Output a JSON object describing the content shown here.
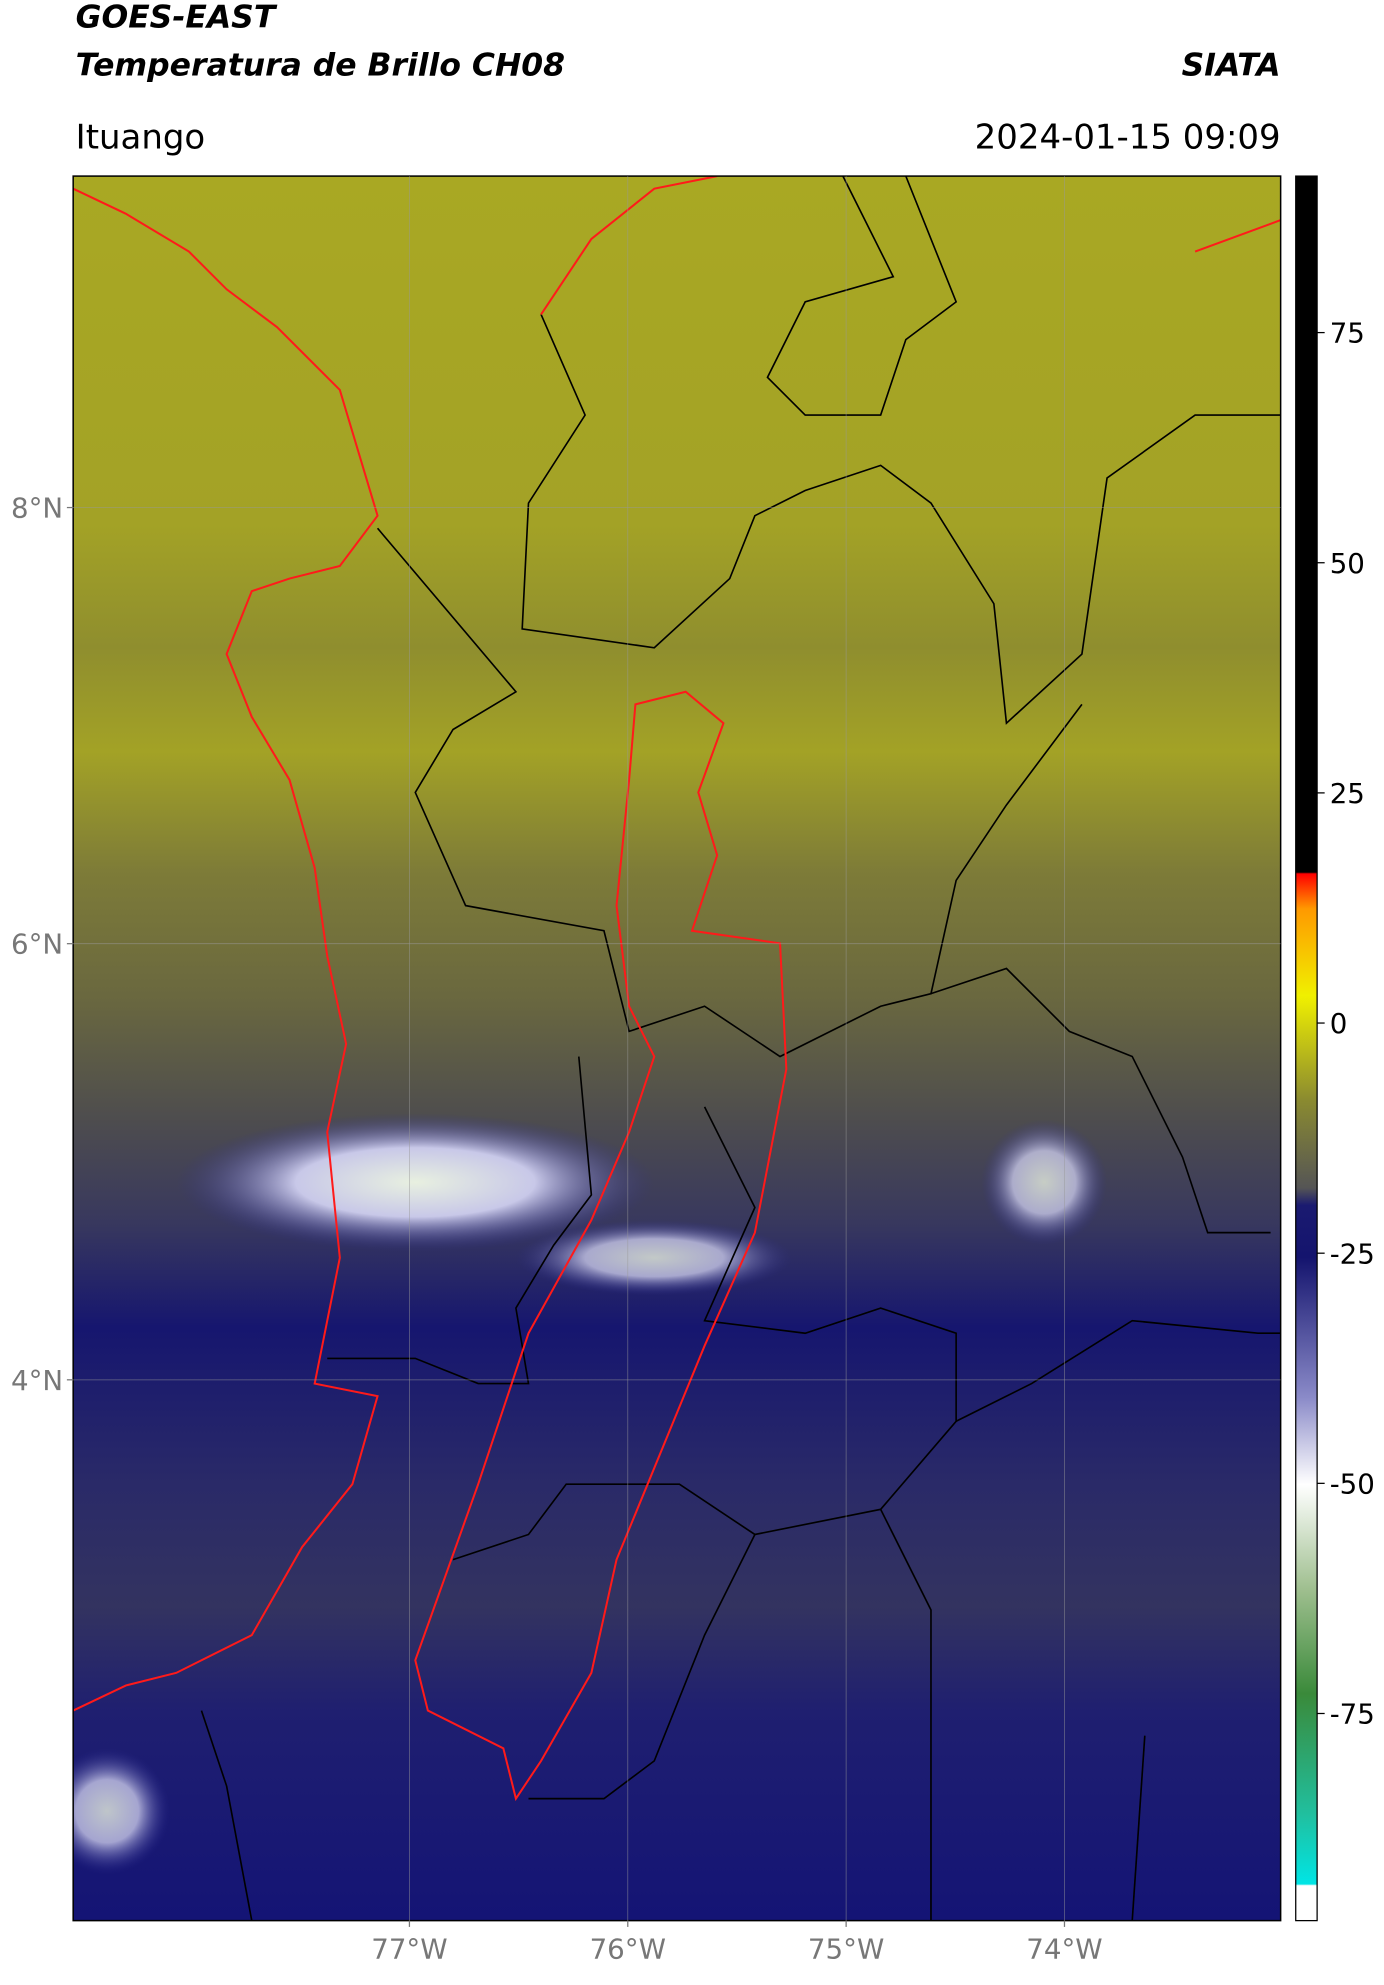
{
  "header": {
    "satellite": "GOES-EAST",
    "product": "Temperatura de Brillo CH08",
    "agency": "SIATA",
    "region": "Ituango",
    "datetime": "2024-01-15 09:09"
  },
  "map": {
    "xlim": [
      -78.54,
      -73.01
    ],
    "ylim": [
      1.52,
      9.52
    ],
    "lat_ticks": [
      {
        "value": 8,
        "label": "8°N"
      },
      {
        "value": 6,
        "label": "6°N"
      },
      {
        "value": 4,
        "label": "4°N"
      }
    ],
    "lon_ticks": [
      {
        "value": -77,
        "label": "77°W"
      },
      {
        "value": -76,
        "label": "76°W"
      },
      {
        "value": -75,
        "label": "75°W"
      },
      {
        "value": -74,
        "label": "74°W"
      }
    ]
  },
  "colorbar": {
    "lim": [
      -97.5,
      92
    ],
    "ticks": [
      75,
      50,
      25,
      0,
      -25,
      -50,
      -75
    ]
  }
}
